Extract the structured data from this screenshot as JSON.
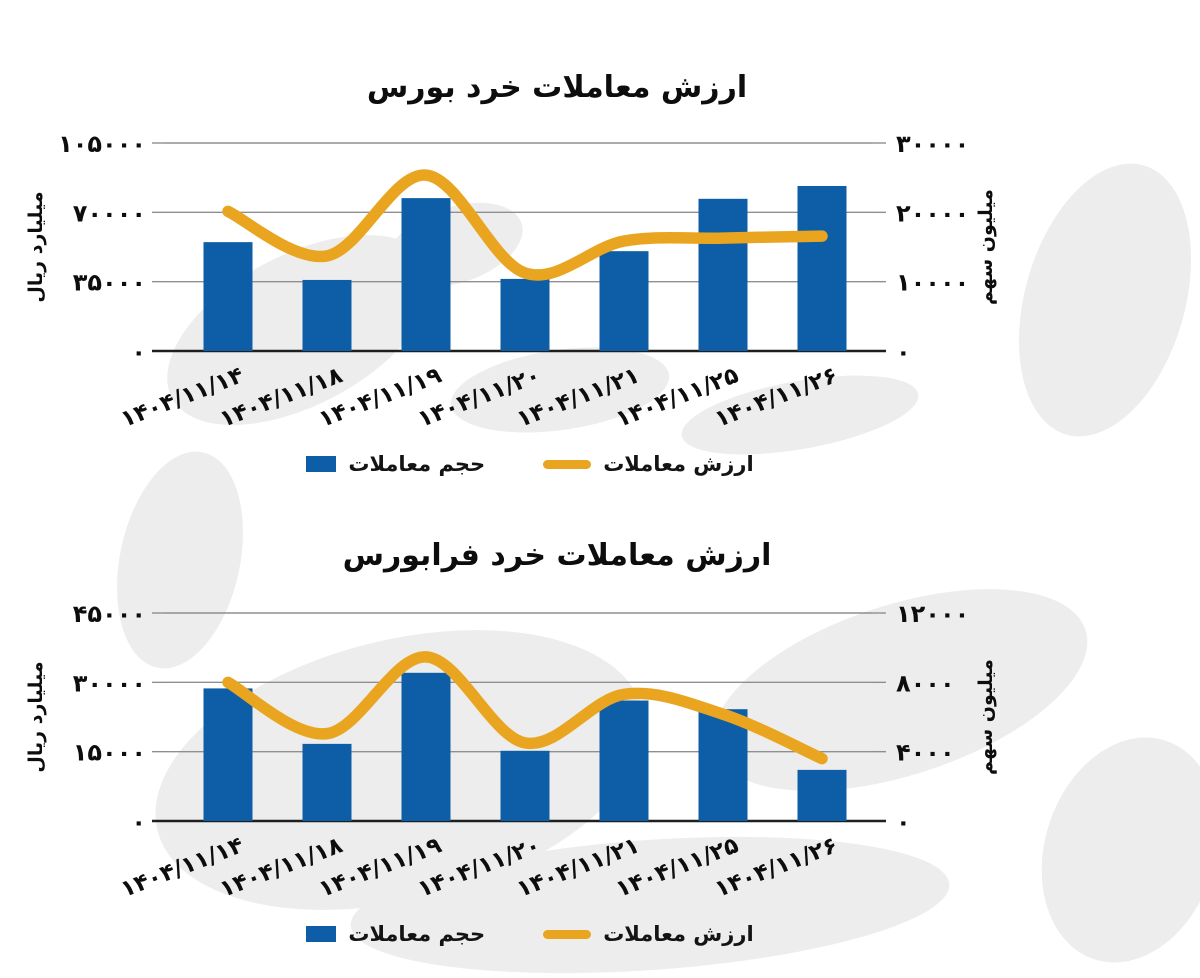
{
  "page": {
    "background": "#FFFFFF",
    "watermark_color": "#EDEDED",
    "grid_color": "#8F8F8F",
    "baseline_color": "#1F1F1F",
    "text_color": "#0D0D0D"
  },
  "chart_data": [
    {
      "type": "combo_bar_line",
      "title": "ارزش معاملات خرد بورس",
      "categories": [
        "۱۴۰۴/۱۱/۱۴",
        "۱۴۰۴/۱۱/۱۸",
        "۱۴۰۴/۱۱/۱۹",
        "۱۴۰۴/۱۱/۲۰",
        "۱۴۰۴/۱۱/۲۱",
        "۱۴۰۴/۱۱/۲۵",
        "۱۴۰۴/۱۱/۲۶"
      ],
      "series": [
        {
          "name": "حجم معاملات",
          "type": "bar",
          "axis": "right",
          "color": "#0D5EA6",
          "values": [
            15700,
            10250,
            22050,
            10400,
            14400,
            21950,
            23800
          ]
        },
        {
          "name": "ارزش معاملات",
          "type": "line",
          "axis": "left",
          "color": "#E9A51F",
          "values": [
            70500,
            48000,
            88800,
            39400,
            55500,
            57000,
            58000
          ]
        }
      ],
      "left_axis": {
        "label": "میلیارد ریال",
        "max": 105000,
        "min": 0,
        "ticks": [
          "۱۰۵۰۰۰",
          "۷۰۰۰۰",
          "۳۵۰۰۰",
          "۰"
        ]
      },
      "right_axis": {
        "label": "میلیون سهم",
        "max": 30000,
        "min": 0,
        "ticks": [
          "۳۰۰۰۰",
          "۲۰۰۰۰",
          "۱۰۰۰۰",
          "۰"
        ]
      },
      "grid": true,
      "legend_position": "bottom"
    },
    {
      "type": "combo_bar_line",
      "title": "ارزش معاملات خرد فرابورس",
      "categories": [
        "۱۴۰۴/۱۱/۱۴",
        "۱۴۰۴/۱۱/۱۸",
        "۱۴۰۴/۱۱/۱۹",
        "۱۴۰۴/۱۱/۲۰",
        "۱۴۰۴/۱۱/۲۱",
        "۱۴۰۴/۱۱/۲۵",
        "۱۴۰۴/۱۱/۲۶"
      ],
      "series": [
        {
          "name": "حجم معاملات",
          "type": "bar",
          "axis": "right",
          "color": "#0D5EA6",
          "values": [
            7650,
            4450,
            8550,
            4050,
            6950,
            6450,
            2950
          ]
        },
        {
          "name": "ارزش معاملات",
          "type": "line",
          "axis": "left",
          "color": "#E9A51F",
          "values": [
            30000,
            18900,
            35500,
            16900,
            27400,
            23100,
            13500
          ]
        }
      ],
      "left_axis": {
        "label": "میلیارد ریال",
        "max": 45000,
        "min": 0,
        "ticks": [
          "۴۵۰۰۰",
          "۳۰۰۰۰",
          "۱۵۰۰۰",
          "۰"
        ]
      },
      "right_axis": {
        "label": "میلیون سهم",
        "max": 12000,
        "min": 0,
        "ticks": [
          "۱۲۰۰۰",
          "۸۰۰۰",
          "۴۰۰۰",
          "۰"
        ]
      },
      "grid": true,
      "legend_position": "bottom"
    }
  ]
}
